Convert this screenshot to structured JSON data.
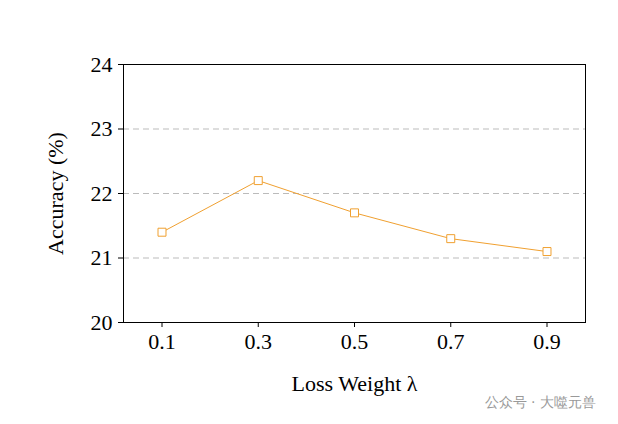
{
  "chart_data": {
    "type": "line",
    "x": [
      0.1,
      0.3,
      0.5,
      0.7,
      0.9
    ],
    "series": [
      {
        "name": "Accuracy",
        "color": "#f0a030",
        "values": [
          21.4,
          22.2,
          21.7,
          21.3,
          21.1
        ],
        "marker": "square"
      }
    ],
    "x_label": "Loss Weight λ",
    "y_label": "Accuracy (%)",
    "xlim": [
      0.02,
      0.98
    ],
    "xticks": [
      0.1,
      0.3,
      0.5,
      0.7,
      0.9
    ],
    "ylim": [
      20,
      24
    ],
    "yticks": [
      20,
      21,
      22,
      23,
      24
    ],
    "grid": true,
    "annotations": [
      "公众号 · 大噬元兽"
    ]
  }
}
